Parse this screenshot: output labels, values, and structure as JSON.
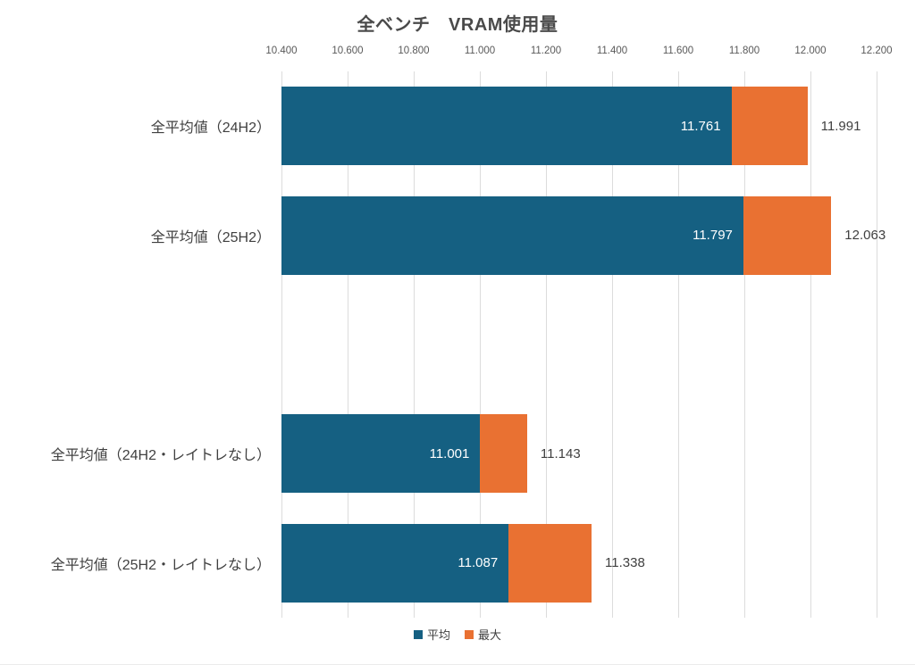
{
  "title": "全ベンチ　VRAM使用量",
  "colors": {
    "avg": "#156082",
    "max": "#E97132",
    "grid": "#dcdcdc",
    "tick_text": "#595959",
    "label_text": "#404040",
    "inside_label_text": "#ffffff",
    "background": "#ffffff"
  },
  "chart_data": {
    "type": "bar",
    "orientation": "horizontal",
    "stacked": true,
    "title": "全ベンチ　VRAM使用量",
    "xlabel": "",
    "ylabel": "",
    "xlim": [
      10.4,
      12.2
    ],
    "xticks": [
      10.4,
      10.6,
      10.8,
      11.0,
      11.2,
      11.4,
      11.6,
      11.8,
      12.0,
      12.2
    ],
    "xtick_labels": [
      "10.400",
      "10.600",
      "10.800",
      "11.000",
      "11.200",
      "11.400",
      "11.600",
      "11.800",
      "12.000",
      "12.200"
    ],
    "grid": true,
    "legend_position": "bottom",
    "categories": [
      "全平均値（24H2）",
      "全平均値（25H2）",
      "",
      "全平均値（24H2・レイトレなし）",
      "全平均値（25H2・レイトレなし）"
    ],
    "series": [
      {
        "name": "平均",
        "color": "#156082",
        "values": [
          11.761,
          11.797,
          null,
          11.001,
          11.087
        ]
      },
      {
        "name": "最大",
        "color": "#E97132",
        "comment": "values are total bar end; orange segment spans from 平均 value to 最大 value",
        "values": [
          11.991,
          12.063,
          null,
          11.143,
          11.338
        ]
      }
    ],
    "bar_labels_inside": [
      "11.761",
      "11.797",
      "",
      "11.001",
      "11.087"
    ],
    "bar_labels_outside": [
      "11.991",
      "12.063",
      "",
      "11.143",
      "11.338"
    ],
    "legend": [
      {
        "label": "平均",
        "color": "#156082"
      },
      {
        "label": "最大",
        "color": "#E97132"
      }
    ]
  }
}
